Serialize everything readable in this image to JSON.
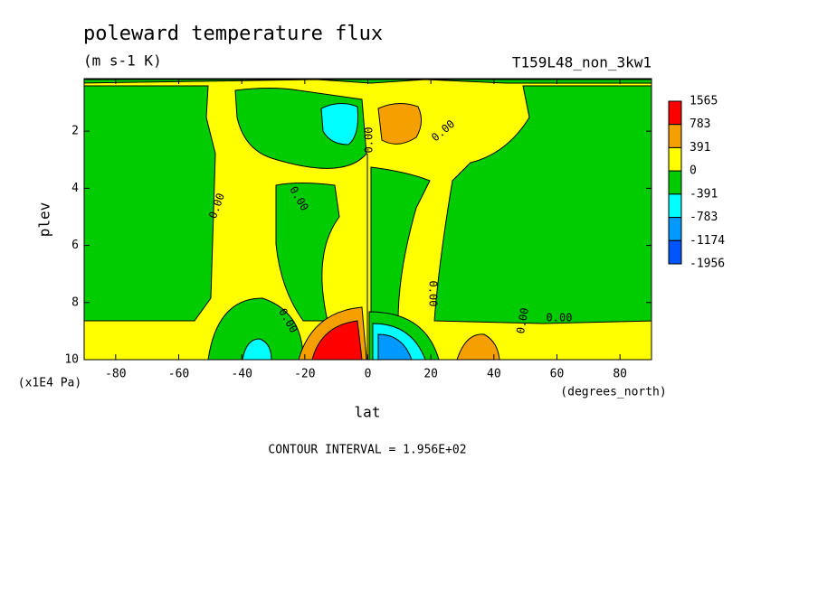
{
  "chart_data": {
    "type": "contour",
    "title": "poleward temperature flux",
    "subtitle": "(m s-1 K)",
    "run_label": "T159L48_non_3kw1",
    "x_label": "lat",
    "x_units": "(degrees_north)",
    "y_label": "plev",
    "y_units": "(x1E4 Pa)",
    "footer": "CONTOUR INTERVAL = 1.956E+02",
    "xlim": [
      -90,
      90
    ],
    "ylim": [
      10,
      0.16
    ],
    "xticks": [
      -80,
      -60,
      -40,
      -20,
      0,
      20,
      40,
      60,
      80
    ],
    "yticks": [
      2,
      4,
      6,
      8,
      10
    ],
    "levels": [
      1565,
      783,
      391,
      0,
      -391,
      -783,
      -1174,
      -1956
    ],
    "level_colors": [
      "#ff0000",
      "#f5a000",
      "#ffff00",
      "#00cc00",
      "#00ffff",
      "#0099ff",
      "#0055ff"
    ],
    "contour_labels": [
      "0.00",
      "0.00",
      "0.00",
      "0.00",
      "0.00",
      "0.00",
      "0.00",
      "0.00"
    ]
  }
}
